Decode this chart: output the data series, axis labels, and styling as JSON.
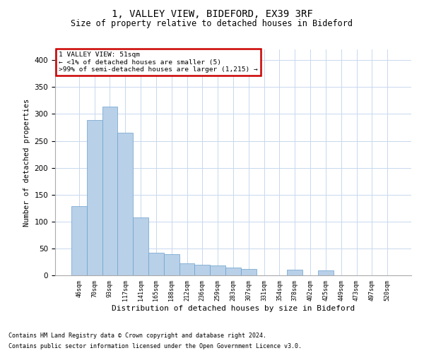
{
  "title1": "1, VALLEY VIEW, BIDEFORD, EX39 3RF",
  "title2": "Size of property relative to detached houses in Bideford",
  "xlabel": "Distribution of detached houses by size in Bideford",
  "ylabel": "Number of detached properties",
  "footer1": "Contains HM Land Registry data © Crown copyright and database right 2024.",
  "footer2": "Contains public sector information licensed under the Open Government Licence v3.0.",
  "annotation_title": "1 VALLEY VIEW: 51sqm",
  "annotation_line2": "← <1% of detached houses are smaller (5)",
  "annotation_line3": ">99% of semi-detached houses are larger (1,215) →",
  "bar_color": "#b8d0e8",
  "bar_edge_color": "#6aa0cc",
  "annotation_box_color": "#ffffff",
  "annotation_box_edge": "#cc0000",
  "bg_color": "#ffffff",
  "grid_color": "#c8d8ee",
  "categories": [
    "46sqm",
    "70sqm",
    "93sqm",
    "117sqm",
    "141sqm",
    "165sqm",
    "188sqm",
    "212sqm",
    "236sqm",
    "259sqm",
    "283sqm",
    "307sqm",
    "331sqm",
    "354sqm",
    "378sqm",
    "402sqm",
    "425sqm",
    "449sqm",
    "473sqm",
    "497sqm",
    "520sqm"
  ],
  "values": [
    128,
    289,
    314,
    265,
    107,
    42,
    40,
    22,
    20,
    18,
    15,
    12,
    0,
    0,
    10,
    0,
    9,
    0,
    0,
    0,
    0
  ],
  "ylim": [
    0,
    420
  ],
  "yticks": [
    0,
    50,
    100,
    150,
    200,
    250,
    300,
    350,
    400
  ],
  "figwidth": 6.0,
  "figheight": 5.0,
  "dpi": 100
}
